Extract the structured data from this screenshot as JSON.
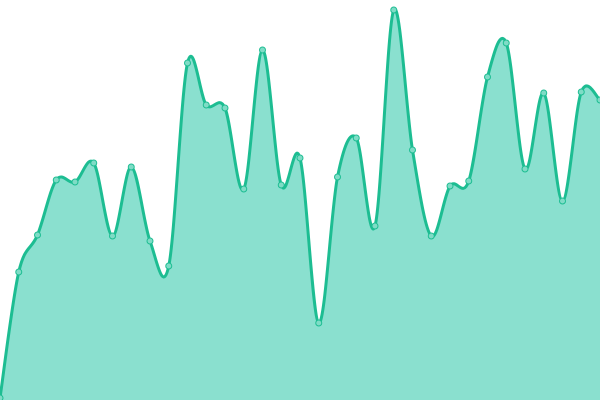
{
  "chart_data": {
    "type": "area",
    "title": "",
    "xlabel": "",
    "ylabel": "",
    "grid": false,
    "axes_visible": false,
    "ylim": [
      0,
      400
    ],
    "x": [
      0,
      1,
      2,
      3,
      4,
      5,
      6,
      7,
      8,
      9,
      10,
      11,
      12,
      13,
      14,
      15,
      16,
      17,
      18,
      19,
      20,
      21,
      22,
      23,
      24,
      25,
      26,
      27,
      28,
      29,
      30,
      31,
      32
    ],
    "series": [
      {
        "values": [
          2,
          128,
          165,
          220,
          218,
          237,
          164,
          233,
          159,
          134,
          337,
          295,
          292,
          211,
          350,
          215,
          242,
          77,
          223,
          262,
          174,
          390,
          250,
          164,
          214,
          219,
          323,
          357,
          231,
          307,
          199,
          308,
          300
        ]
      }
    ],
    "colors": {
      "line": "#1dbd92",
      "fill": "#8ae0cf",
      "marker_fill": "#7fdcc6",
      "marker_stroke": "#1dbd92"
    }
  }
}
